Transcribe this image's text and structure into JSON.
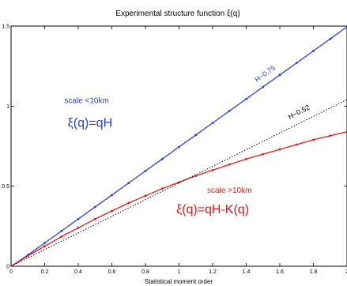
{
  "chart_data": {
    "type": "line",
    "title": "Experimental structure function  ξ(q)",
    "xlabel": "Statistical moment order",
    "ylabel": "",
    "xlim": [
      0,
      2
    ],
    "ylim": [
      0,
      1.5
    ],
    "xticks": [
      0,
      0.2,
      0.4,
      0.6,
      0.8,
      1,
      1.2,
      1.4,
      1.6,
      1.8,
      2
    ],
    "xtick_labels": [
      "0",
      "0.2",
      "0.4",
      "0.6",
      "0.8",
      "1",
      "1.2",
      "1.4",
      "1.6",
      "1.8",
      "2"
    ],
    "yticks": [
      0,
      0.5,
      1,
      1.5
    ],
    "ytick_labels": [
      "0",
      "0.5",
      "1",
      "1.5"
    ],
    "grid": false,
    "series": [
      {
        "color": "#2a3fd0",
        "style": "solid",
        "markers": true,
        "x": [
          0.1,
          0.2,
          0.3,
          0.4,
          0.5,
          0.6,
          0.7,
          0.8,
          0.9,
          1.0,
          1.1,
          1.2,
          1.3,
          1.4,
          1.5,
          1.6,
          1.7,
          1.8,
          1.9,
          2.0
        ],
        "y": [
          0.07,
          0.145,
          0.22,
          0.295,
          0.37,
          0.445,
          0.52,
          0.595,
          0.67,
          0.745,
          0.82,
          0.895,
          0.97,
          1.045,
          1.12,
          1.195,
          1.27,
          1.345,
          1.42,
          1.495
        ]
      },
      {
        "color": "#d42020",
        "style": "solid",
        "markers": true,
        "x": [
          0.1,
          0.2,
          0.3,
          0.4,
          0.5,
          0.6,
          0.7,
          0.8,
          0.9,
          1.0,
          1.1,
          1.2,
          1.3,
          1.4,
          1.5,
          1.6,
          1.7,
          1.8,
          1.9,
          2.0
        ],
        "y": [
          0.065,
          0.125,
          0.185,
          0.24,
          0.295,
          0.345,
          0.395,
          0.44,
          0.485,
          0.525,
          0.565,
          0.6,
          0.635,
          0.67,
          0.7,
          0.73,
          0.76,
          0.79,
          0.815,
          0.84
        ]
      },
      {
        "color": "#000000",
        "style": "dotted",
        "markers": false,
        "x": [
          0,
          2
        ],
        "y": [
          0,
          1.04
        ]
      }
    ],
    "annotations": [
      {
        "text": "H~0.75",
        "x": 1.52,
        "y": 1.19,
        "color": "#2a3fd0",
        "size": "slope",
        "rotate": -35
      },
      {
        "text": "H~0.52",
        "x": 1.72,
        "y": 0.95,
        "color": "#000000",
        "size": "slope",
        "rotate": -27
      },
      {
        "text": "scale <10km",
        "x": 0.45,
        "y": 1.02,
        "color": "#2a3fd0",
        "size": "small",
        "rotate": 0
      },
      {
        "text": "ξ(q)=qH",
        "x": 0.47,
        "y": 0.87,
        "color": "#2a3fd0",
        "size": "big",
        "rotate": 0
      },
      {
        "text": "scale >10km",
        "x": 1.3,
        "y": 0.46,
        "color": "#d42020",
        "size": "small",
        "rotate": 0
      },
      {
        "text": "ξ(q)=qH-K(q)",
        "x": 1.2,
        "y": 0.33,
        "color": "#d42020",
        "size": "big",
        "rotate": 0
      }
    ]
  }
}
